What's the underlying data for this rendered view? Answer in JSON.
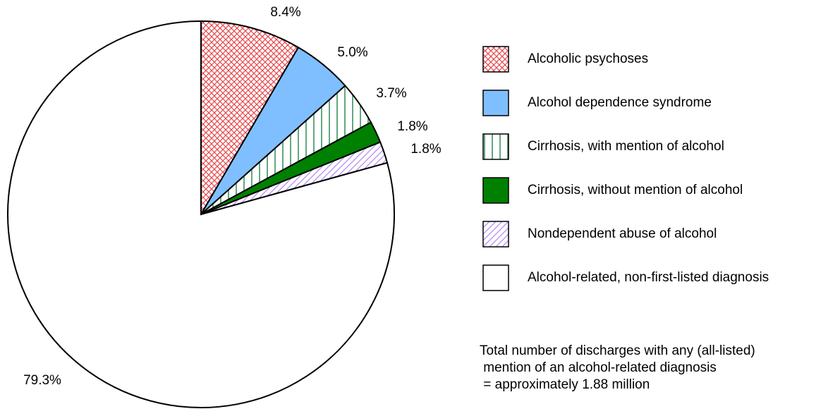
{
  "chart_data": {
    "type": "pie",
    "categories": [
      "Alcoholic psychoses",
      "Alcohol dependence syndrome",
      "Cirrhosis, with mention of alcohol",
      "Cirrhosis, without mention of alcohol",
      "Nondependent abuse of alcohol",
      "Alcohol-related, non-first-listed diagnosis"
    ],
    "values": [
      8.4,
      5.0,
      3.7,
      1.8,
      1.8,
      79.3
    ],
    "value_labels": [
      "8.4%",
      "5.0%",
      "3.7%",
      "1.8%",
      "1.8%",
      "79.3%"
    ],
    "colors": [
      "#e8474c",
      "#80bfff",
      "#2e8b57",
      "#008000",
      "#b58cf0",
      "#ffffff"
    ],
    "patterns": [
      "crosshatch",
      "solid",
      "vertical",
      "solid",
      "diagonal",
      "solid"
    ],
    "annotation": [
      "Total number of discharges with any (all-listed)",
      " mention of an alcohol-related diagnosis",
      " = approximately 1.88 million"
    ]
  }
}
